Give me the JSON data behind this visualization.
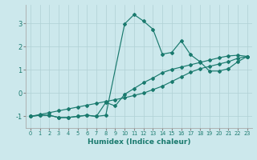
{
  "xlabel": "Humidex (Indice chaleur)",
  "bg_color": "#cce8ec",
  "grid_color": "#b0d0d5",
  "line_color": "#1a7a6e",
  "xlim": [
    -0.5,
    23.5
  ],
  "ylim": [
    -1.5,
    3.8
  ],
  "yticks": [
    -1,
    0,
    1,
    2,
    3
  ],
  "xticks": [
    0,
    1,
    2,
    3,
    4,
    5,
    6,
    7,
    8,
    9,
    10,
    11,
    12,
    13,
    14,
    15,
    16,
    17,
    18,
    19,
    20,
    21,
    22,
    23
  ],
  "line_straight_x": [
    0,
    1,
    2,
    3,
    4,
    5,
    6,
    7,
    8,
    9,
    10,
    11,
    12,
    13,
    14,
    15,
    16,
    17,
    18,
    19,
    20,
    21,
    22,
    23
  ],
  "line_straight_y": [
    -1.0,
    -0.92,
    -0.84,
    -0.76,
    -0.68,
    -0.6,
    -0.52,
    -0.44,
    -0.36,
    -0.28,
    -0.2,
    -0.1,
    0.0,
    0.15,
    0.3,
    0.5,
    0.7,
    0.9,
    1.05,
    1.15,
    1.25,
    1.35,
    1.5,
    1.58
  ],
  "line_peak_x": [
    0,
    1,
    2,
    3,
    4,
    5,
    6,
    7,
    8,
    10,
    11,
    12,
    13,
    14,
    15,
    16,
    17,
    18,
    19,
    20,
    21,
    22,
    23
  ],
  "line_peak_y": [
    -1.0,
    -0.95,
    -0.95,
    -1.05,
    -1.05,
    -1.0,
    -0.95,
    -1.0,
    -0.95,
    2.98,
    3.38,
    3.1,
    2.75,
    1.68,
    1.75,
    2.25,
    1.65,
    1.35,
    0.95,
    0.95,
    1.05,
    1.35,
    1.58
  ],
  "line_mid_x": [
    0,
    1,
    2,
    3,
    4,
    5,
    6,
    7,
    8,
    9,
    10,
    11,
    12,
    13,
    14,
    15,
    16,
    17,
    18,
    19,
    20,
    21,
    22,
    23
  ],
  "line_mid_y": [
    -1.0,
    -0.95,
    -0.95,
    -1.05,
    -1.05,
    -1.0,
    -0.95,
    -1.0,
    -0.4,
    -0.55,
    -0.05,
    0.2,
    0.45,
    0.65,
    0.88,
    1.02,
    1.12,
    1.22,
    1.32,
    1.42,
    1.52,
    1.6,
    1.63,
    1.58
  ]
}
